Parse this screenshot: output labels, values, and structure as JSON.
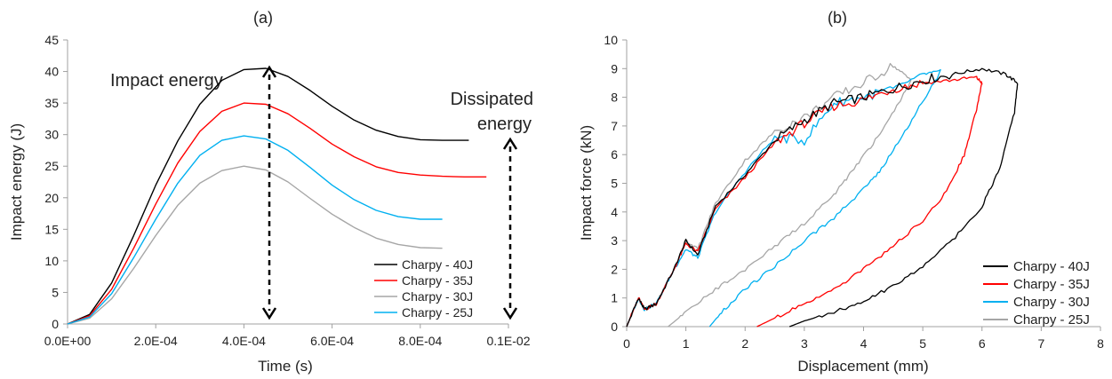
{
  "chart_data": [
    {
      "type": "line",
      "title": "(a)",
      "xlabel": "Time (s)",
      "ylabel": "Impact energy (J)",
      "xlim": [
        0,
        0.001
      ],
      "ylim": [
        0,
        45
      ],
      "x_ticks": [
        "0.0E+00",
        "2.0E-04",
        "4.0E-04",
        "6.0E-04",
        "8.0E-04",
        "0.1E-02"
      ],
      "y_ticks": [
        "0",
        "5",
        "10",
        "15",
        "20",
        "25",
        "30",
        "35",
        "40",
        "45"
      ],
      "grid": false,
      "legend": "bottom-right",
      "legend_entries": [
        "Charpy - 40J",
        "Charpy - 35J",
        "Charpy - 30J",
        "Charpy - 25J"
      ],
      "annotations": [
        "Impact energy",
        "Dissipated",
        "energy"
      ],
      "series": [
        {
          "name": "Charpy - 40J",
          "color": "#000000",
          "x": [
            0,
            5e-05,
            0.0001,
            0.00015,
            0.0002,
            0.00025,
            0.0003,
            0.00035,
            0.0004,
            0.00045,
            0.0005,
            0.00055,
            0.0006,
            0.00065,
            0.0007,
            0.00075,
            0.0008,
            0.00085,
            0.00091
          ],
          "y": [
            0,
            1.5,
            6.5,
            14,
            22,
            29,
            34.8,
            38.6,
            40.3,
            40.5,
            39.2,
            37,
            34.5,
            32.3,
            30.7,
            29.7,
            29.2,
            29.1,
            29.1
          ]
        },
        {
          "name": "Charpy - 35J",
          "color": "#ff0000",
          "x": [
            0,
            5e-05,
            0.0001,
            0.00015,
            0.0002,
            0.00025,
            0.0003,
            0.00035,
            0.0004,
            0.00045,
            0.0005,
            0.00055,
            0.0006,
            0.00065,
            0.0007,
            0.00075,
            0.0008,
            0.00085,
            0.0009,
            0.00095
          ],
          "y": [
            0,
            1.3,
            5.5,
            12,
            19,
            25.5,
            30.5,
            33.7,
            35,
            34.8,
            33.3,
            31,
            28.5,
            26.5,
            24.9,
            24,
            23.6,
            23.4,
            23.3,
            23.3
          ]
        },
        {
          "name": "Charpy - 30J",
          "color": "#a6a6a6",
          "x": [
            0,
            5e-05,
            0.0001,
            0.00015,
            0.0002,
            0.00025,
            0.0003,
            0.00035,
            0.0004,
            0.00045,
            0.0005,
            0.00055,
            0.0006,
            0.00065,
            0.0007,
            0.00075,
            0.0008,
            0.00085
          ],
          "y": [
            0,
            0.9,
            4,
            8.8,
            14,
            18.8,
            22.3,
            24.3,
            25,
            24.4,
            22.5,
            19.9,
            17.4,
            15.3,
            13.6,
            12.6,
            12.1,
            12.0
          ]
        },
        {
          "name": "Charpy - 25J",
          "color": "#00b0f0",
          "x": [
            0,
            5e-05,
            0.0001,
            0.00015,
            0.0002,
            0.00025,
            0.0003,
            0.00035,
            0.0004,
            0.00045,
            0.0005,
            0.00055,
            0.0006,
            0.00065,
            0.0007,
            0.00075,
            0.0008,
            0.00085
          ],
          "y": [
            0,
            1.1,
            4.8,
            10.5,
            16.6,
            22.3,
            26.7,
            29.1,
            29.8,
            29.3,
            27.5,
            24.8,
            22,
            19.7,
            18,
            17,
            16.6,
            16.6
          ]
        }
      ]
    },
    {
      "type": "line",
      "title": "(b)",
      "xlabel": "Displacement (mm)",
      "ylabel": "Impact force (kN)",
      "xlim": [
        0,
        8
      ],
      "ylim": [
        0,
        10
      ],
      "x_ticks": [
        "0",
        "1",
        "2",
        "3",
        "4",
        "5",
        "6",
        "7",
        "8"
      ],
      "y_ticks": [
        "0",
        "1",
        "2",
        "3",
        "4",
        "5",
        "6",
        "7",
        "8",
        "9",
        "10"
      ],
      "grid": false,
      "legend": "bottom-right",
      "series": [
        {
          "name": "Charpy - 40J",
          "color": "#000000",
          "x": [
            0,
            0.2,
            0.3,
            0.5,
            0.8,
            1,
            1.2,
            1.5,
            2,
            2.5,
            3,
            3.5,
            4,
            4.5,
            5,
            5.5,
            6,
            6.4,
            6.6,
            6.55,
            6.3,
            6,
            5.5,
            5,
            4.5,
            4,
            3.5,
            3,
            2.75
          ],
          "y": [
            0,
            1,
            0.6,
            0.8,
            2,
            3,
            2.5,
            4.2,
            5.3,
            6.5,
            7.2,
            7.8,
            8,
            8.3,
            8.6,
            8.8,
            9,
            8.8,
            8.5,
            7.5,
            5.5,
            4.2,
            3,
            2.1,
            1.4,
            0.9,
            0.5,
            0.2,
            0
          ]
        },
        {
          "name": "Charpy - 35J",
          "color": "#ff0000",
          "x": [
            0,
            0.2,
            0.3,
            0.5,
            0.8,
            1,
            1.2,
            1.5,
            2,
            2.5,
            3,
            3.5,
            4,
            4.5,
            5,
            5.5,
            5.9,
            6,
            5.9,
            5.7,
            5.4,
            5,
            4.5,
            4,
            3.5,
            3,
            2.5,
            2.2
          ],
          "y": [
            0,
            1,
            0.6,
            0.8,
            2,
            2.9,
            2.6,
            4.1,
            5.2,
            6.4,
            7.1,
            7.7,
            7.9,
            8.3,
            8.5,
            8.6,
            8.7,
            8.5,
            7.5,
            6,
            4.7,
            3.7,
            2.8,
            2,
            1.3,
            0.8,
            0.3,
            0
          ]
        },
        {
          "name": "Charpy - 30J",
          "color": "#00b0f0",
          "x": [
            0,
            0.2,
            0.3,
            0.5,
            0.8,
            1,
            1.2,
            1.5,
            2,
            2.5,
            3,
            3.5,
            4,
            4.5,
            5,
            5.3,
            5.1,
            4.7,
            4.3,
            4,
            3.5,
            3,
            2.5,
            2,
            1.6,
            1.4
          ],
          "y": [
            0,
            1,
            0.6,
            0.8,
            2,
            2.7,
            2.4,
            4,
            5.4,
            6.6,
            6.5,
            7.8,
            8,
            8.3,
            8.8,
            8.9,
            8.2,
            6.8,
            5.5,
            4.8,
            3.8,
            3,
            2.1,
            1.3,
            0.5,
            0
          ]
        },
        {
          "name": "Charpy - 25J",
          "color": "#a6a6a6",
          "x": [
            0,
            0.2,
            0.3,
            0.5,
            0.8,
            1,
            1.2,
            1.5,
            2,
            2.5,
            3,
            3.5,
            4,
            4.5,
            4.8,
            4.6,
            4.2,
            3.8,
            3.5,
            3,
            2.5,
            2,
            1.5,
            1,
            0.7
          ],
          "y": [
            0,
            1,
            0.6,
            0.8,
            2,
            3,
            2.7,
            4.3,
            5.8,
            6.8,
            7.3,
            8,
            8.5,
            9.1,
            8.6,
            7.8,
            6.5,
            5.4,
            4.6,
            3.6,
            2.8,
            2,
            1.3,
            0.5,
            0
          ]
        }
      ]
    }
  ]
}
